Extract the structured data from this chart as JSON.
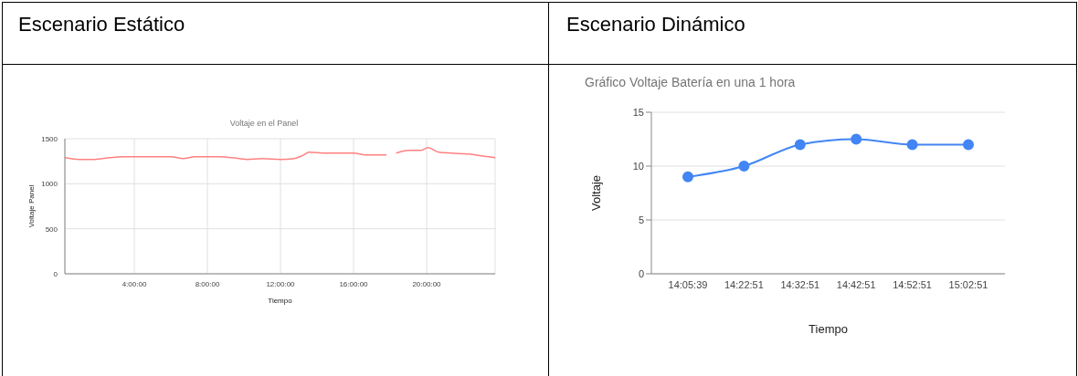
{
  "chart_data": [
    {
      "type": "line",
      "title": "Escenario Estático",
      "subtitle": "Voltaje en el Panel",
      "xlabel": "Tiempo",
      "ylabel": "Voltaje Panel",
      "x": [
        0.2,
        1.0,
        1.83,
        2.67,
        3.33,
        4,
        4.67,
        5.33,
        6,
        6.67,
        7.33,
        8.03,
        8.67,
        9.33,
        10.17,
        11,
        12,
        12.75,
        13.17,
        13.58,
        14.33,
        15,
        16,
        16.67,
        17.17,
        17.8,
        18.05,
        18.33,
        19,
        19.67,
        20.08,
        20.67,
        21.33,
        22.33,
        23,
        23.75
      ],
      "values": [
        1290,
        1270,
        1270,
        1290,
        1300,
        1300,
        1300,
        1300,
        1300,
        1280,
        1300,
        1300,
        1300,
        1290,
        1270,
        1280,
        1270,
        1280,
        1310,
        1350,
        1340,
        1340,
        1340,
        1320,
        1320,
        1320,
        null,
        1340,
        1370,
        1370,
        1400,
        1350,
        1340,
        1330,
        1310,
        1290
      ],
      "color": "#ff8080",
      "xlim": [
        0.2,
        23.75
      ],
      "xticks": [
        {
          "value": 4,
          "label": "4:00:00"
        },
        {
          "value": 8,
          "label": "8:00:00"
        },
        {
          "value": 12,
          "label": "12:00:00"
        },
        {
          "value": 16,
          "label": "16:00:00"
        },
        {
          "value": 20,
          "label": "20:00:00"
        }
      ],
      "ylim": [
        0,
        1500
      ],
      "yticks": [
        0,
        500,
        1000,
        1500
      ],
      "grid": true,
      "marker": "none"
    },
    {
      "type": "line",
      "title": "Escenario Dinámico",
      "subtitle": "Gráfico Voltaje Batería en una 1 hora",
      "xlabel": "Tiempo",
      "ylabel": "Voltaje",
      "categories": [
        "14:05:39",
        "14:22:51",
        "14:32:51",
        "14:42:51",
        "14:52:51",
        "15:02:51"
      ],
      "values": [
        9,
        10,
        12,
        12.5,
        12,
        12
      ],
      "color": "#4285f4",
      "ylim": [
        0,
        15
      ],
      "yticks": [
        0,
        5,
        10,
        15
      ],
      "grid": "y",
      "marker": "circle"
    }
  ]
}
